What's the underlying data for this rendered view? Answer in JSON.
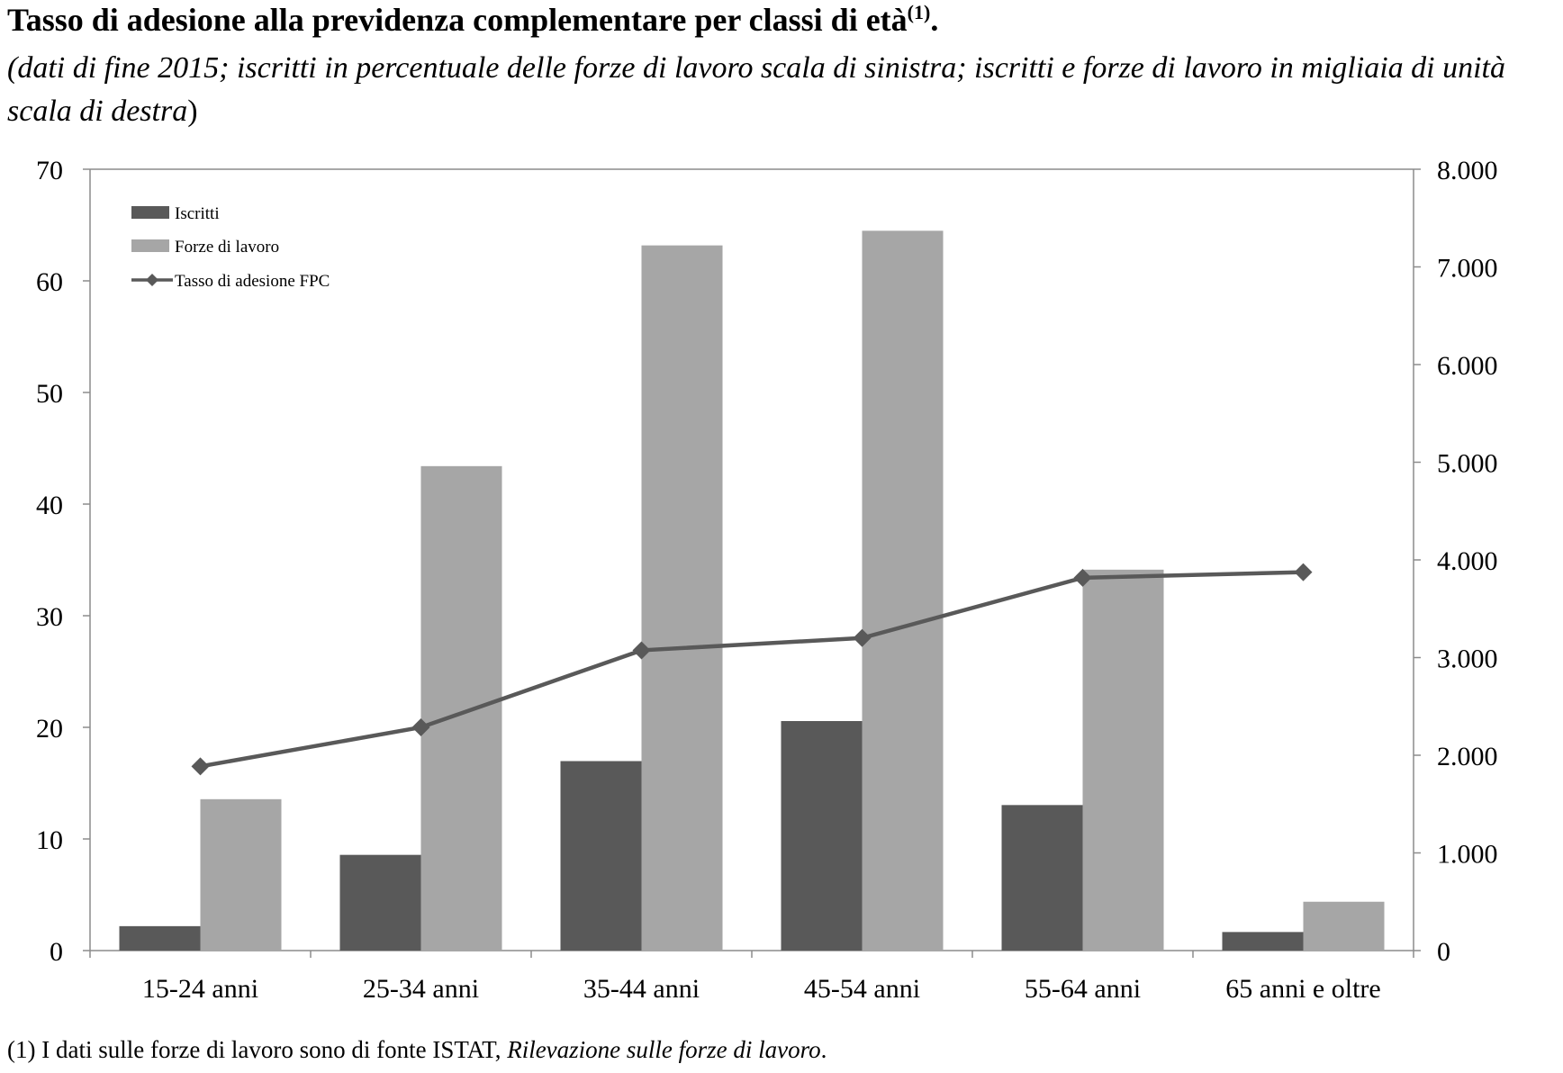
{
  "header": {
    "title": "Tasso di adesione alla previdenza complementare per classi di età",
    "title_note": "(1)",
    "title_end": ".",
    "subtitle_main": "(dati di fine 2015; iscritti in percentuale delle forze di lavoro scala di sinistra; iscritti e forze di lavoro in migliaia di unità scala di destra",
    "subtitle_close": ")"
  },
  "footnote": {
    "prefix": "(1) I dati sulle forze di lavoro sono di fonte ISTAT, ",
    "source": "Rilevazione sulle forze di lavoro",
    "suffix": "."
  },
  "chart_data": {
    "type": "bar",
    "categories": [
      "15-24 anni",
      "25-34 anni",
      "35-44 anni",
      "45-54 anni",
      "55-64 anni",
      "65 anni e oltre"
    ],
    "series": [
      {
        "name": "Iscritti",
        "type": "bar",
        "axis": "right",
        "color": "#595959",
        "values": [
          250,
          980,
          1940,
          2350,
          1490,
          190
        ]
      },
      {
        "name": "Forze di lavoro",
        "type": "bar",
        "axis": "right",
        "color": "#a6a6a6",
        "values": [
          1550,
          4960,
          7220,
          7370,
          3900,
          500
        ]
      },
      {
        "name": "Tasso di adesione FPC",
        "type": "line",
        "axis": "left",
        "color": "#595959",
        "marker": "diamond",
        "values": [
          16.5,
          20.0,
          26.9,
          28.0,
          33.4,
          33.9
        ]
      }
    ],
    "y_left": {
      "range": [
        0,
        70
      ],
      "ticks": [
        0,
        10,
        20,
        30,
        40,
        50,
        60,
        70
      ],
      "tick_labels": [
        "0",
        "10",
        "20",
        "30",
        "40",
        "50",
        "60",
        "70"
      ]
    },
    "y_right": {
      "range": [
        0,
        8000
      ],
      "ticks": [
        0,
        1000,
        2000,
        3000,
        4000,
        5000,
        6000,
        7000,
        8000
      ],
      "tick_labels": [
        "0",
        "1.000",
        "2.000",
        "3.000",
        "4.000",
        "5.000",
        "6.000",
        "7.000",
        "8.000"
      ]
    },
    "grid": false,
    "legend": "top-left"
  }
}
